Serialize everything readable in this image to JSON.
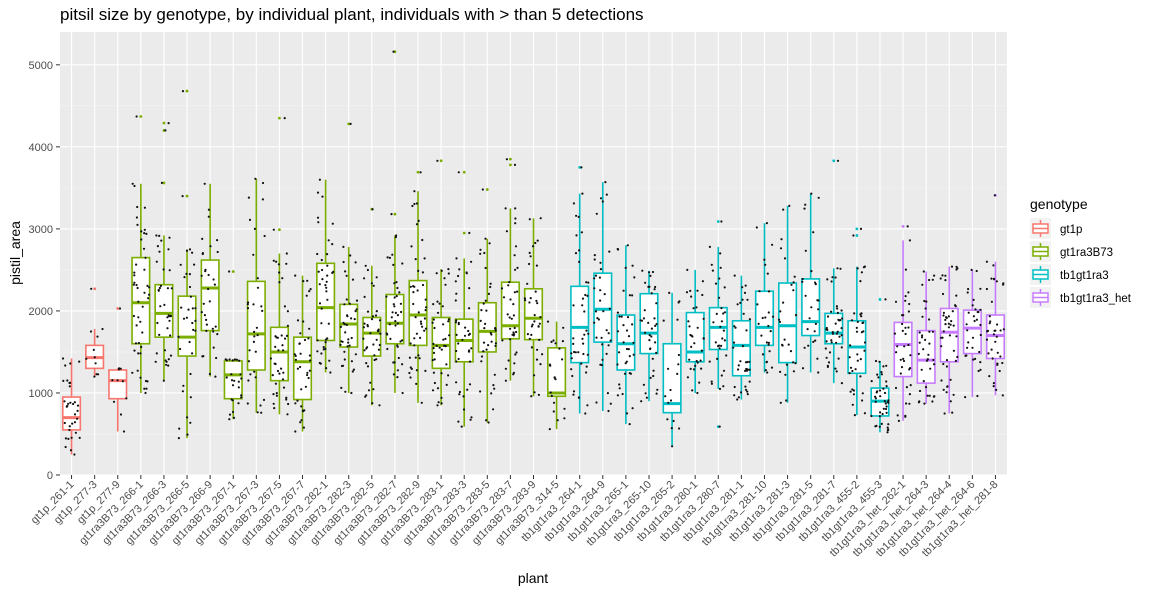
{
  "chart_data": {
    "type": "box",
    "title": "pitsil size by genotype, by individual plant, individuals with > than 5 detections",
    "xlabel": "plant",
    "ylabel": "pistil_area",
    "ylim": [
      0,
      5400
    ],
    "yticks": [
      0,
      1000,
      2000,
      3000,
      4000,
      5000
    ],
    "grid": true,
    "legend": {
      "title": "genotype",
      "position": "right",
      "entries": [
        {
          "name": "gt1p",
          "color": "#F8766D"
        },
        {
          "name": "gt1ra3B73",
          "color": "#7CAE00"
        },
        {
          "name": "tb1gt1ra3",
          "color": "#00BFC4"
        },
        {
          "name": "tb1gt1ra3_het",
          "color": "#C77CFF"
        }
      ]
    },
    "plants": [
      {
        "plant": "gt1p_261-1",
        "genotype": "gt1p",
        "whisker_low": 250,
        "q1": 550,
        "median": 700,
        "q3": 950,
        "whisker_high": 1420,
        "n": 30,
        "outliers": []
      },
      {
        "plant": "gt1p_277-3",
        "genotype": "gt1p",
        "whisker_low": 1200,
        "q1": 1300,
        "median": 1430,
        "q3": 1580,
        "whisker_high": 1780,
        "n": 8,
        "outliers": [
          2270
        ]
      },
      {
        "plant": "gt1p_277-9",
        "genotype": "gt1p",
        "whisker_low": 530,
        "q1": 930,
        "median": 1150,
        "q3": 1280,
        "whisker_high": 1300,
        "n": 7,
        "outliers": [
          2030
        ]
      },
      {
        "plant": "gt1ra3B73_266-1",
        "genotype": "gt1ra3B73",
        "whisker_low": 1000,
        "q1": 1600,
        "median": 2100,
        "q3": 2650,
        "whisker_high": 3550,
        "n": 45,
        "outliers": [
          4370
        ]
      },
      {
        "plant": "gt1ra3B73_266-3",
        "genotype": "gt1ra3B73",
        "whisker_low": 1150,
        "q1": 1680,
        "median": 1970,
        "q3": 2320,
        "whisker_high": 2920,
        "n": 35,
        "outliers": [
          3560,
          4200,
          4290
        ]
      },
      {
        "plant": "gt1ra3B73_266-5",
        "genotype": "gt1ra3B73",
        "whisker_low": 450,
        "q1": 1450,
        "median": 1680,
        "q3": 2180,
        "whisker_high": 2750,
        "n": 30,
        "outliers": [
          3400,
          4680
        ]
      },
      {
        "plant": "gt1ra3B73_266-9",
        "genotype": "gt1ra3B73",
        "whisker_low": 1200,
        "q1": 1760,
        "median": 2280,
        "q3": 2620,
        "whisker_high": 3550,
        "n": 30,
        "outliers": []
      },
      {
        "plant": "gt1ra3B73_267-1",
        "genotype": "gt1ra3B73",
        "whisker_low": 680,
        "q1": 930,
        "median": 1220,
        "q3": 1390,
        "whisker_high": 1410,
        "n": 22,
        "outliers": [
          2480
        ]
      },
      {
        "plant": "gt1ra3B73_267-3",
        "genotype": "gt1ra3B73",
        "whisker_low": 760,
        "q1": 1280,
        "median": 1720,
        "q3": 2360,
        "whisker_high": 3610,
        "n": 30,
        "outliers": []
      },
      {
        "plant": "gt1ra3B73_267-5",
        "genotype": "gt1ra3B73",
        "whisker_low": 740,
        "q1": 1150,
        "median": 1500,
        "q3": 1800,
        "whisker_high": 2700,
        "n": 38,
        "outliers": [
          2990,
          4350
        ]
      },
      {
        "plant": "gt1ra3B73_267-7",
        "genotype": "gt1ra3B73",
        "whisker_low": 530,
        "q1": 920,
        "median": 1380,
        "q3": 1680,
        "whisker_high": 2430,
        "n": 35,
        "outliers": []
      },
      {
        "plant": "gt1ra3B73_282-1",
        "genotype": "gt1ra3B73",
        "whisker_low": 1250,
        "q1": 1640,
        "median": 2040,
        "q3": 2580,
        "whisker_high": 3600,
        "n": 40,
        "outliers": []
      },
      {
        "plant": "gt1ra3B73_282-3",
        "genotype": "gt1ra3B73",
        "whisker_low": 1000,
        "q1": 1560,
        "median": 1840,
        "q3": 2080,
        "whisker_high": 2780,
        "n": 38,
        "outliers": [
          4280
        ]
      },
      {
        "plant": "gt1ra3B73_282-5",
        "genotype": "gt1ra3B73",
        "whisker_low": 850,
        "q1": 1450,
        "median": 1730,
        "q3": 1920,
        "whisker_high": 2550,
        "n": 40,
        "outliers": [
          3240
        ]
      },
      {
        "plant": "gt1ra3B73_282-7",
        "genotype": "gt1ra3B73",
        "whisker_low": 1000,
        "q1": 1600,
        "median": 1850,
        "q3": 2200,
        "whisker_high": 2920,
        "n": 40,
        "outliers": [
          3180,
          5160
        ]
      },
      {
        "plant": "gt1ra3B73_282-9",
        "genotype": "gt1ra3B73",
        "whisker_low": 880,
        "q1": 1580,
        "median": 1950,
        "q3": 2370,
        "whisker_high": 3460,
        "n": 45,
        "outliers": [
          3690
        ]
      },
      {
        "plant": "gt1ra3B73_283-1",
        "genotype": "gt1ra3B73",
        "whisker_low": 850,
        "q1": 1300,
        "median": 1580,
        "q3": 1920,
        "whisker_high": 2510,
        "n": 40,
        "outliers": [
          3830
        ]
      },
      {
        "plant": "gt1ra3B73_283-3",
        "genotype": "gt1ra3B73",
        "whisker_low": 590,
        "q1": 1380,
        "median": 1640,
        "q3": 1900,
        "whisker_high": 2640,
        "n": 38,
        "outliers": [
          2950,
          3690
        ]
      },
      {
        "plant": "gt1ra3B73_283-5",
        "genotype": "gt1ra3B73",
        "whisker_low": 640,
        "q1": 1500,
        "median": 1750,
        "q3": 2100,
        "whisker_high": 2880,
        "n": 35,
        "outliers": [
          3480
        ]
      },
      {
        "plant": "gt1ra3B73_283-7",
        "genotype": "gt1ra3B73",
        "whisker_low": 1150,
        "q1": 1660,
        "median": 1820,
        "q3": 2350,
        "whisker_high": 3250,
        "n": 35,
        "outliers": [
          3780,
          3850
        ]
      },
      {
        "plant": "gt1ra3B73_283-9",
        "genotype": "gt1ra3B73",
        "whisker_low": 960,
        "q1": 1650,
        "median": 1910,
        "q3": 2270,
        "whisker_high": 3130,
        "n": 35,
        "outliers": []
      },
      {
        "plant": "gt1ra3B73_314-5",
        "genotype": "gt1ra3B73",
        "whisker_low": 560,
        "q1": 960,
        "median": 1000,
        "q3": 1550,
        "whisker_high": 1870,
        "n": 18,
        "outliers": []
      },
      {
        "plant": "tb1gt1ra3_264-1",
        "genotype": "tb1gt1ra3",
        "whisker_low": 750,
        "q1": 1370,
        "median": 1800,
        "q3": 2300,
        "whisker_high": 3430,
        "n": 40,
        "outliers": [
          3750
        ]
      },
      {
        "plant": "tb1gt1ra3_264-9",
        "genotype": "tb1gt1ra3",
        "whisker_low": 780,
        "q1": 1620,
        "median": 2020,
        "q3": 2460,
        "whisker_high": 3570,
        "n": 35,
        "outliers": []
      },
      {
        "plant": "tb1gt1ra3_265-1",
        "genotype": "tb1gt1ra3",
        "whisker_low": 620,
        "q1": 1280,
        "median": 1600,
        "q3": 1950,
        "whisker_high": 2800,
        "n": 35,
        "outliers": []
      },
      {
        "plant": "tb1gt1ra3_265-10",
        "genotype": "tb1gt1ra3",
        "whisker_low": 900,
        "q1": 1480,
        "median": 1730,
        "q3": 2210,
        "whisker_high": 2490,
        "n": 35,
        "outliers": []
      },
      {
        "plant": "tb1gt1ra3_265-2",
        "genotype": "tb1gt1ra3",
        "whisker_low": 350,
        "q1": 760,
        "median": 870,
        "q3": 1600,
        "whisker_high": 2220,
        "n": 15,
        "outliers": []
      },
      {
        "plant": "tb1gt1ra3_280-1",
        "genotype": "tb1gt1ra3",
        "whisker_low": 1000,
        "q1": 1380,
        "median": 1500,
        "q3": 1980,
        "whisker_high": 2500,
        "n": 30,
        "outliers": []
      },
      {
        "plant": "tb1gt1ra3_280-7",
        "genotype": "tb1gt1ra3",
        "whisker_low": 1050,
        "q1": 1530,
        "median": 1800,
        "q3": 2040,
        "whisker_high": 2780,
        "n": 30,
        "outliers": [
          590,
          3090
        ]
      },
      {
        "plant": "tb1gt1ra3_281-1",
        "genotype": "tb1gt1ra3",
        "whisker_low": 920,
        "q1": 1210,
        "median": 1580,
        "q3": 1880,
        "whisker_high": 2430,
        "n": 35,
        "outliers": []
      },
      {
        "plant": "tb1gt1ra3_281-10",
        "genotype": "tb1gt1ra3",
        "whisker_low": 1250,
        "q1": 1580,
        "median": 1800,
        "q3": 2240,
        "whisker_high": 3070,
        "n": 25,
        "outliers": []
      },
      {
        "plant": "tb1gt1ra3_281-3",
        "genotype": "tb1gt1ra3",
        "whisker_low": 880,
        "q1": 1370,
        "median": 1820,
        "q3": 2340,
        "whisker_high": 3280,
        "n": 25,
        "outliers": []
      },
      {
        "plant": "tb1gt1ra3_281-5",
        "genotype": "tb1gt1ra3",
        "whisker_low": 1250,
        "q1": 1700,
        "median": 1870,
        "q3": 2390,
        "whisker_high": 3430,
        "n": 25,
        "outliers": []
      },
      {
        "plant": "tb1gt1ra3_281-7",
        "genotype": "tb1gt1ra3",
        "whisker_low": 1120,
        "q1": 1600,
        "median": 1730,
        "q3": 1970,
        "whisker_high": 2520,
        "n": 40,
        "outliers": [
          3830
        ]
      },
      {
        "plant": "tb1gt1ra3_455-2",
        "genotype": "tb1gt1ra3",
        "whisker_low": 730,
        "q1": 1240,
        "median": 1560,
        "q3": 1880,
        "whisker_high": 2540,
        "n": 35,
        "outliers": [
          2920,
          3000
        ]
      },
      {
        "plant": "tb1gt1ra3_455-3",
        "genotype": "tb1gt1ra3",
        "whisker_low": 520,
        "q1": 720,
        "median": 900,
        "q3": 1060,
        "whisker_high": 1390,
        "n": 40,
        "outliers": [
          2140
        ]
      },
      {
        "plant": "tb1gt1ra3_het_262-1",
        "genotype": "tb1gt1ra3_het",
        "whisker_low": 660,
        "q1": 1200,
        "median": 1590,
        "q3": 1860,
        "whisker_high": 2860,
        "n": 35,
        "outliers": [
          3030
        ]
      },
      {
        "plant": "tb1gt1ra3_het_264-3",
        "genotype": "tb1gt1ra3_het",
        "whisker_low": 870,
        "q1": 1120,
        "median": 1400,
        "q3": 1760,
        "whisker_high": 2480,
        "n": 35,
        "outliers": []
      },
      {
        "plant": "tb1gt1ra3_het_264-4",
        "genotype": "tb1gt1ra3_het",
        "whisker_low": 750,
        "q1": 1380,
        "median": 1740,
        "q3": 2030,
        "whisker_high": 2540,
        "n": 45,
        "outliers": []
      },
      {
        "plant": "tb1gt1ra3_het_264-6",
        "genotype": "tb1gt1ra3_het",
        "whisker_low": 950,
        "q1": 1480,
        "median": 1790,
        "q3": 2010,
        "whisker_high": 2500,
        "n": 30,
        "outliers": []
      },
      {
        "plant": "tb1gt1ra3_het_281-8",
        "genotype": "tb1gt1ra3_het",
        "whisker_low": 970,
        "q1": 1420,
        "median": 1700,
        "q3": 1950,
        "whisker_high": 2600,
        "n": 35,
        "outliers": [
          3410
        ]
      }
    ]
  }
}
